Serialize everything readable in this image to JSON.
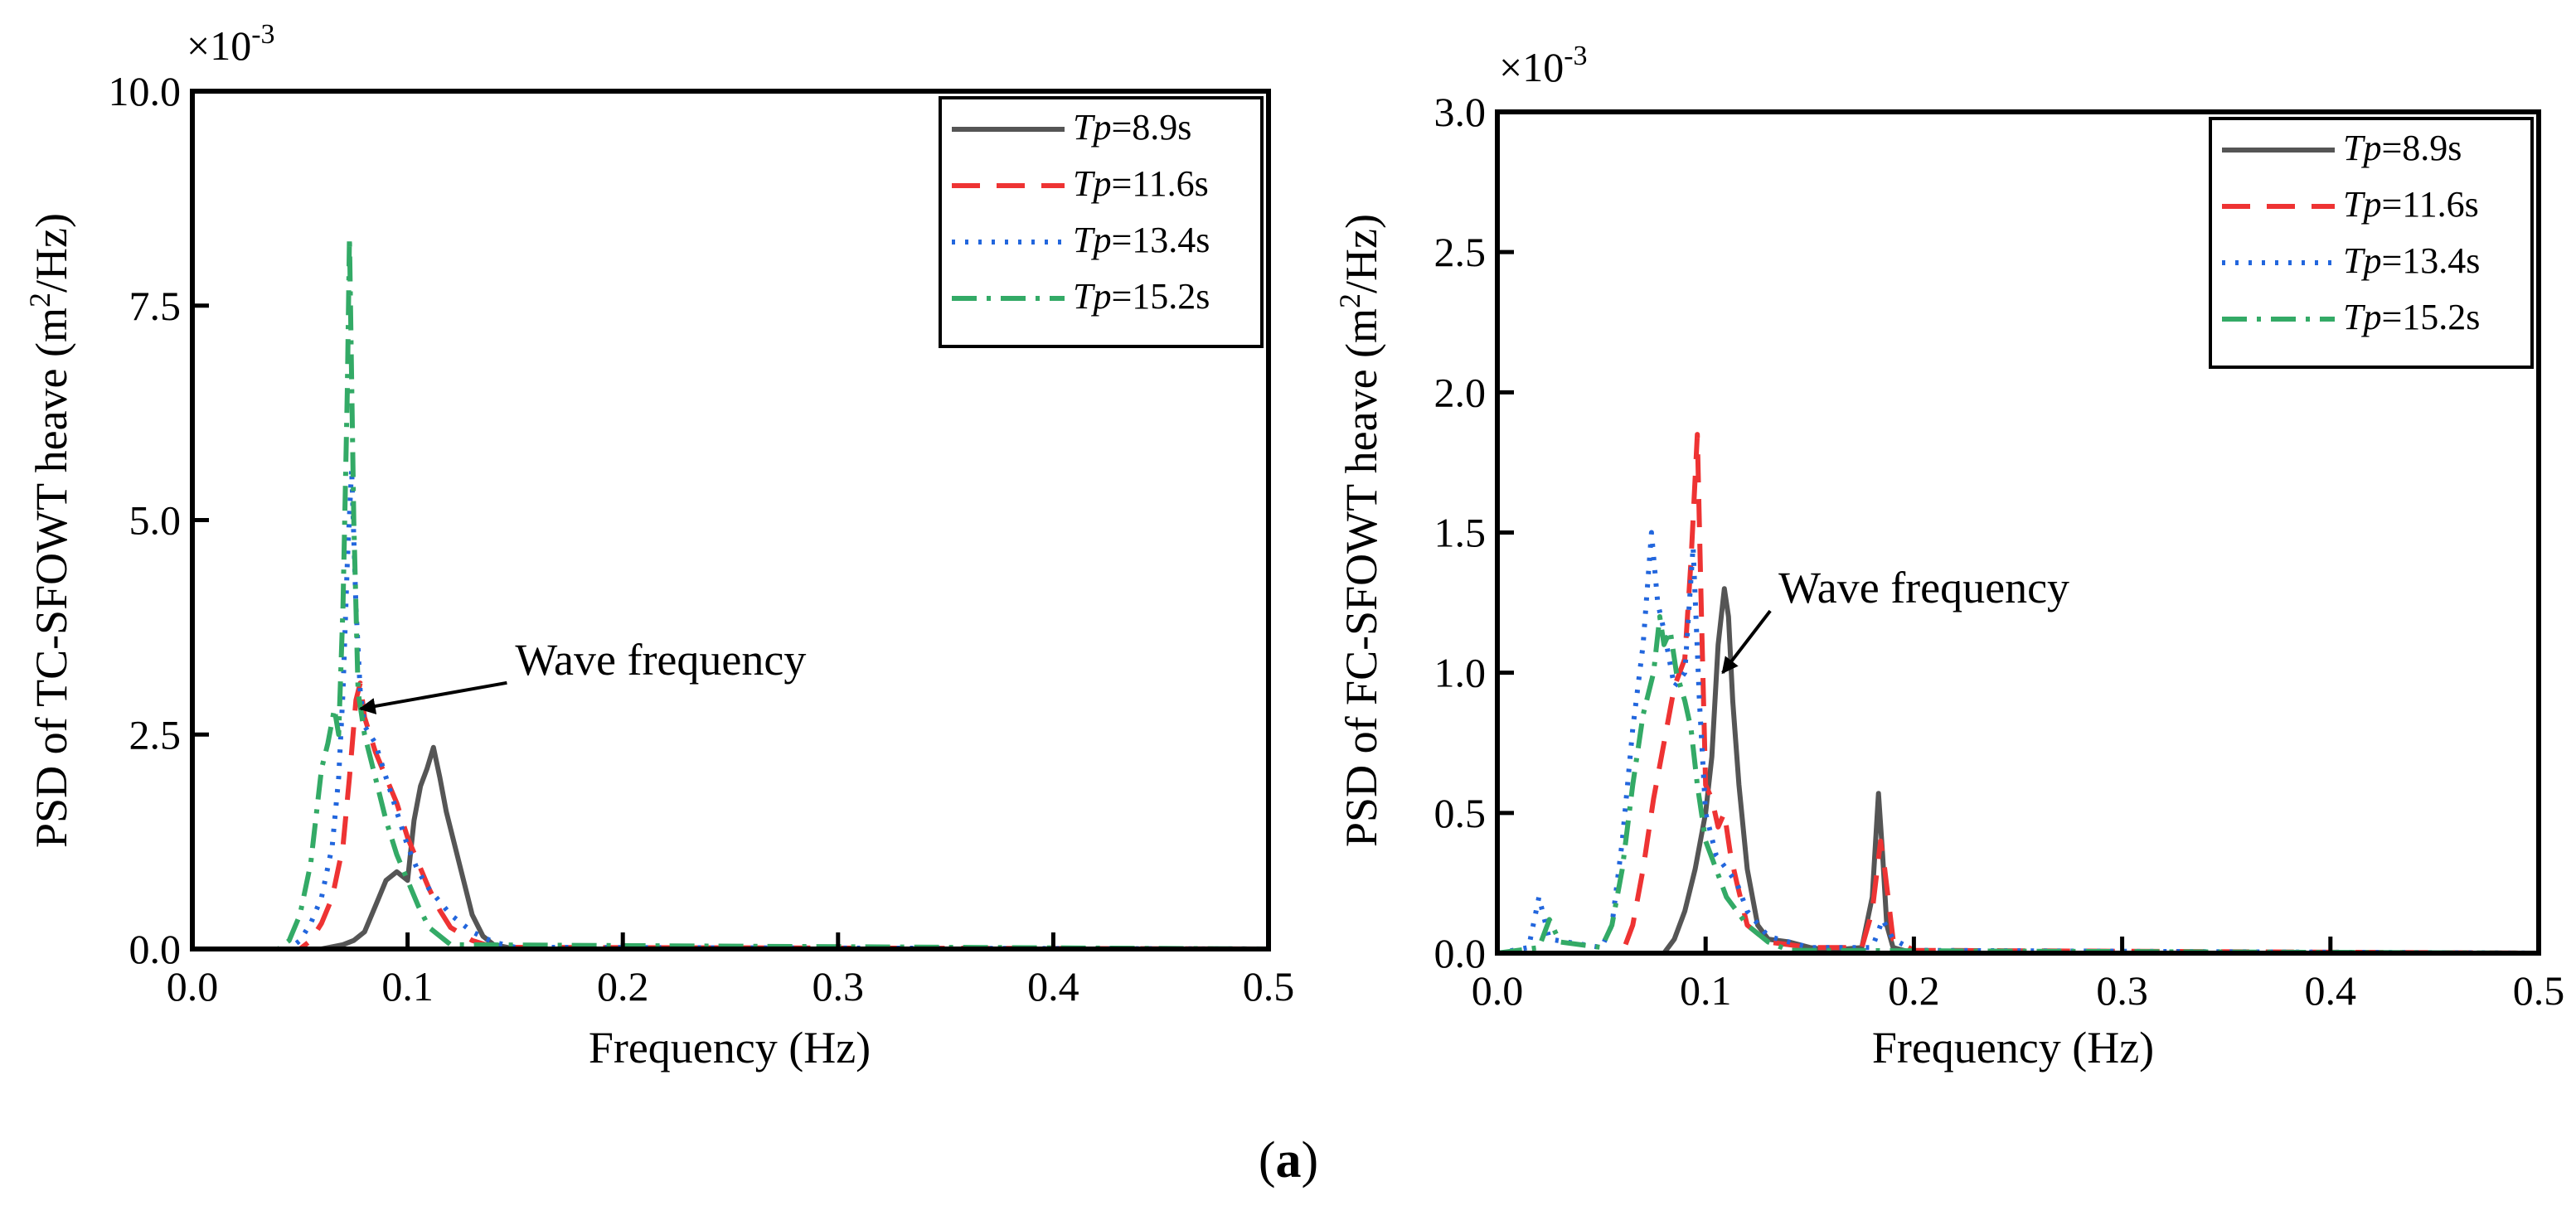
{
  "figure": {
    "panel_label_open": "(",
    "panel_label_letter": "a",
    "panel_label_close": ")"
  },
  "colors": {
    "Tp=8.9s": "#555555",
    "Tp=11.6s": "#ee3333",
    "Tp=13.4s": "#2266dd",
    "Tp=15.2s": "#33aa66"
  },
  "chart_data": [
    {
      "type": "line",
      "title": "",
      "xlabel": "Frequency (Hz)",
      "ylabel_prefix": "PSD of TC-SFOWT heave (m",
      "ylabel_sup": "2",
      "ylabel_suffix": "/Hz)",
      "y_multiplier": "×10",
      "y_multiplier_exp": "-3",
      "xlim": [
        0.0,
        0.5
      ],
      "ylim": [
        0.0,
        10.0
      ],
      "xticks": [
        0.0,
        0.1,
        0.2,
        0.3,
        0.4,
        0.5
      ],
      "xtick_labels": [
        "0.0",
        "0.1",
        "0.2",
        "0.3",
        "0.4",
        "0.5"
      ],
      "yticks": [
        0.0,
        2.5,
        5.0,
        7.5,
        10.0
      ],
      "ytick_labels": [
        "0.0",
        "2.5",
        "5.0",
        "7.5",
        "10.0"
      ],
      "legend_position": "top-right",
      "annotation": {
        "text": "Wave frequency",
        "x": 0.075,
        "y": 2.8,
        "text_x": 0.15,
        "text_y": 3.2
      },
      "series": [
        {
          "name": "Tp=8.9s",
          "label_italic": "Tp",
          "label_rest": "=8.9s",
          "style": "solid",
          "x": [
            0.0,
            0.06,
            0.07,
            0.075,
            0.08,
            0.085,
            0.09,
            0.095,
            0.1,
            0.103,
            0.106,
            0.109,
            0.112,
            0.115,
            0.118,
            0.122,
            0.126,
            0.13,
            0.135,
            0.14,
            0.15,
            0.5
          ],
          "y": [
            0,
            0,
            0.05,
            0.1,
            0.2,
            0.5,
            0.8,
            0.9,
            0.8,
            1.5,
            1.9,
            2.1,
            2.35,
            2.0,
            1.6,
            1.2,
            0.8,
            0.4,
            0.15,
            0.05,
            0,
            0
          ]
        },
        {
          "name": "Tp=11.6s",
          "label_italic": "Tp",
          "label_rest": "=11.6s",
          "style": "dashed",
          "x": [
            0.0,
            0.05,
            0.055,
            0.06,
            0.065,
            0.07,
            0.073,
            0.076,
            0.078,
            0.08,
            0.085,
            0.09,
            0.095,
            0.1,
            0.105,
            0.11,
            0.115,
            0.12,
            0.13,
            0.14,
            0.5
          ],
          "y": [
            0,
            0,
            0.1,
            0.3,
            0.6,
            1.2,
            2.0,
            2.9,
            3.1,
            2.7,
            2.3,
            2.0,
            1.7,
            1.3,
            1.0,
            0.7,
            0.45,
            0.25,
            0.1,
            0.02,
            0
          ]
        },
        {
          "name": "Tp=13.4s",
          "label_italic": "Tp",
          "label_rest": "=13.4s",
          "style": "dotted",
          "x": [
            0.0,
            0.045,
            0.05,
            0.055,
            0.06,
            0.065,
            0.068,
            0.07,
            0.072,
            0.074,
            0.076,
            0.078,
            0.08,
            0.085,
            0.09,
            0.095,
            0.1,
            0.105,
            0.11,
            0.12,
            0.13,
            0.14,
            0.15,
            0.5
          ],
          "y": [
            0,
            0,
            0.1,
            0.3,
            0.6,
            1.2,
            2.0,
            3.0,
            4.5,
            5.6,
            4.0,
            3.0,
            2.6,
            2.4,
            2.0,
            1.6,
            1.2,
            0.9,
            0.7,
            0.4,
            0.2,
            0.08,
            0.02,
            0
          ]
        },
        {
          "name": "Tp=15.2s",
          "label_italic": "Tp",
          "label_rest": "=15.2s",
          "style": "dashdot",
          "x": [
            0.0,
            0.04,
            0.045,
            0.05,
            0.055,
            0.06,
            0.063,
            0.066,
            0.068,
            0.07,
            0.072,
            0.073,
            0.075,
            0.077,
            0.08,
            0.085,
            0.09,
            0.095,
            0.1,
            0.105,
            0.11,
            0.12,
            0.5
          ],
          "y": [
            0,
            0,
            0.1,
            0.4,
            1.0,
            2.1,
            2.4,
            2.8,
            2.5,
            4.0,
            6.5,
            8.3,
            5.0,
            3.0,
            2.5,
            2.0,
            1.5,
            1.1,
            0.8,
            0.5,
            0.25,
            0.05,
            0
          ]
        }
      ]
    },
    {
      "type": "line",
      "title": "",
      "xlabel": "Frequency (Hz)",
      "ylabel_prefix": "PSD of FC-SFOWT heave (m",
      "ylabel_sup": "2",
      "ylabel_suffix": "/Hz)",
      "y_multiplier": "×10",
      "y_multiplier_exp": "-3",
      "xlim": [
        0.0,
        0.5
      ],
      "ylim": [
        0.0,
        3.0
      ],
      "xticks": [
        0.0,
        0.1,
        0.2,
        0.3,
        0.4,
        0.5
      ],
      "xtick_labels": [
        "0.0",
        "0.1",
        "0.2",
        "0.3",
        "0.4",
        "0.5"
      ],
      "yticks": [
        0.0,
        0.5,
        1.0,
        1.5,
        2.0,
        2.5,
        3.0
      ],
      "ytick_labels": [
        "0.0",
        "0.5",
        "1.0",
        "1.5",
        "2.0",
        "2.5",
        "3.0"
      ],
      "legend_position": "top-right",
      "annotation": {
        "text": "Wave frequency",
        "x": 0.105,
        "y": 1.0,
        "text_x": 0.135,
        "text_y": 1.25
      },
      "series": [
        {
          "name": "Tp=8.9s",
          "label_italic": "Tp",
          "label_rest": "=8.9s",
          "style": "solid",
          "x": [
            0.0,
            0.08,
            0.085,
            0.09,
            0.095,
            0.1,
            0.103,
            0.106,
            0.109,
            0.111,
            0.113,
            0.116,
            0.12,
            0.125,
            0.13,
            0.14,
            0.15,
            0.16,
            0.175,
            0.18,
            0.183,
            0.185,
            0.187,
            0.19,
            0.2,
            0.5
          ],
          "y": [
            0,
            0,
            0.05,
            0.15,
            0.3,
            0.5,
            0.7,
            1.1,
            1.3,
            1.2,
            0.9,
            0.6,
            0.3,
            0.1,
            0.05,
            0.04,
            0.02,
            0.01,
            0.02,
            0.2,
            0.57,
            0.35,
            0.1,
            0.02,
            0,
            0
          ]
        },
        {
          "name": "Tp=11.6s",
          "label_italic": "Tp",
          "label_rest": "=11.6s",
          "style": "dashed",
          "x": [
            0.0,
            0.06,
            0.065,
            0.07,
            0.075,
            0.08,
            0.085,
            0.09,
            0.093,
            0.096,
            0.098,
            0.1,
            0.103,
            0.106,
            0.109,
            0.112,
            0.115,
            0.12,
            0.13,
            0.15,
            0.175,
            0.18,
            0.184,
            0.186,
            0.19,
            0.2,
            0.5
          ],
          "y": [
            0,
            0,
            0.1,
            0.3,
            0.55,
            0.75,
            0.95,
            1.05,
            1.4,
            1.85,
            1.2,
            0.6,
            0.55,
            0.45,
            0.5,
            0.35,
            0.25,
            0.1,
            0.04,
            0.02,
            0.02,
            0.15,
            0.4,
            0.3,
            0.05,
            0.01,
            0
          ]
        },
        {
          "name": "Tp=13.4s",
          "label_italic": "Tp",
          "label_rest": "=13.4s",
          "style": "dotted",
          "x": [
            0.0,
            0.015,
            0.02,
            0.025,
            0.05,
            0.055,
            0.06,
            0.065,
            0.07,
            0.074,
            0.077,
            0.08,
            0.085,
            0.09,
            0.094,
            0.097,
            0.1,
            0.105,
            0.11,
            0.115,
            0.12,
            0.13,
            0.15,
            0.18,
            0.185,
            0.19,
            0.2,
            0.5
          ],
          "y": [
            0,
            0.02,
            0.2,
            0.05,
            0.02,
            0.1,
            0.4,
            0.8,
            1.1,
            1.5,
            1.25,
            1.15,
            0.95,
            1.0,
            1.45,
            0.9,
            0.5,
            0.35,
            0.3,
            0.25,
            0.15,
            0.06,
            0.02,
            0.02,
            0.12,
            0.05,
            0.01,
            0
          ]
        },
        {
          "name": "Tp=15.2s",
          "label_italic": "Tp",
          "label_rest": "=15.2s",
          "style": "dashdot",
          "x": [
            0.0,
            0.02,
            0.025,
            0.03,
            0.05,
            0.055,
            0.06,
            0.065,
            0.07,
            0.075,
            0.078,
            0.08,
            0.083,
            0.086,
            0.09,
            0.093,
            0.096,
            0.1,
            0.105,
            0.11,
            0.12,
            0.13,
            0.14,
            0.5
          ],
          "y": [
            0,
            0.02,
            0.12,
            0.04,
            0.02,
            0.1,
            0.3,
            0.6,
            0.85,
            1.0,
            1.2,
            1.1,
            1.15,
            1.0,
            0.9,
            0.8,
            0.6,
            0.4,
            0.3,
            0.2,
            0.1,
            0.04,
            0.01,
            0
          ]
        }
      ]
    }
  ]
}
